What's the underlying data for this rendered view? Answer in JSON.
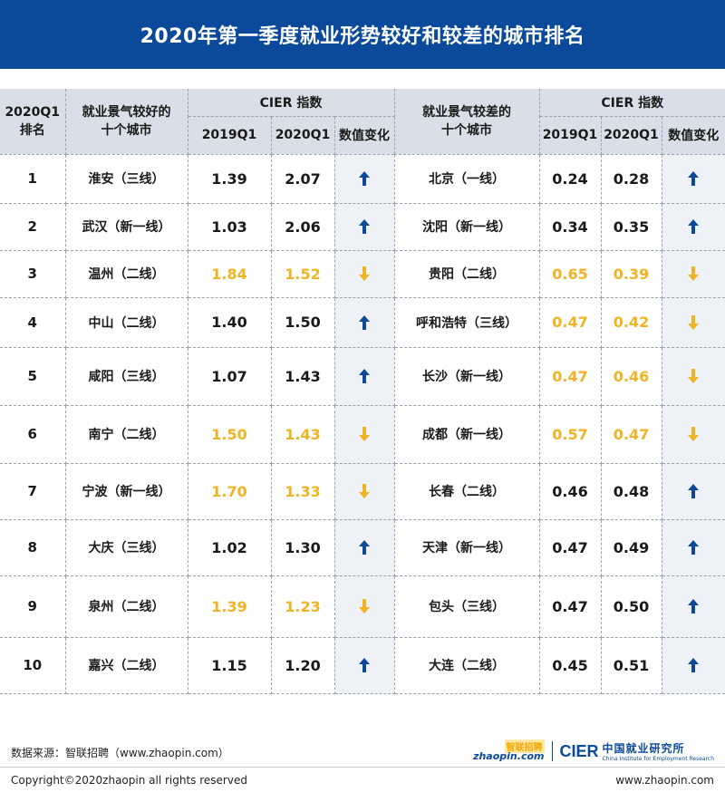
{
  "title": "2020年第一季度就业形势较好和较差的城市排名",
  "headers": {
    "rank": "2020Q1\n排名",
    "good_cities": "就业景气较好的\n十个城市",
    "cier_index": "CIER 指数",
    "q2019": "2019Q1",
    "q2020": "2020Q1",
    "change": "数值变化",
    "bad_cities": "就业景气较差的\n十个城市"
  },
  "colors": {
    "up": "#0b4a9b",
    "down": "#f0b323",
    "header_bg": "#d8dfe8",
    "title_bg": "#0b4a9b"
  },
  "rows": [
    {
      "rank": "1",
      "good": {
        "city": "淮安（三线）",
        "v2019": "1.39",
        "v2020": "2.07",
        "dir": "up"
      },
      "bad": {
        "city": "北京（一线）",
        "v2019": "0.24",
        "v2020": "0.28",
        "dir": "up"
      }
    },
    {
      "rank": "2",
      "good": {
        "city": "武汉（新一线）",
        "v2019": "1.03",
        "v2020": "2.06",
        "dir": "up"
      },
      "bad": {
        "city": "沈阳（新一线）",
        "v2019": "0.34",
        "v2020": "0.35",
        "dir": "up"
      }
    },
    {
      "rank": "3",
      "good": {
        "city": "温州（二线）",
        "v2019": "1.84",
        "v2020": "1.52",
        "dir": "down"
      },
      "bad": {
        "city": "贵阳（二线）",
        "v2019": "0.65",
        "v2020": "0.39",
        "dir": "down"
      }
    },
    {
      "rank": "4",
      "good": {
        "city": "中山（二线）",
        "v2019": "1.40",
        "v2020": "1.50",
        "dir": "up"
      },
      "bad": {
        "city": "呼和浩特（三线）",
        "v2019": "0.47",
        "v2020": "0.42",
        "dir": "down"
      }
    },
    {
      "rank": "5",
      "good": {
        "city": "咸阳（三线）",
        "v2019": "1.07",
        "v2020": "1.43",
        "dir": "up"
      },
      "bad": {
        "city": "长沙（新一线）",
        "v2019": "0.47",
        "v2020": "0.46",
        "dir": "down"
      }
    },
    {
      "rank": "6",
      "good": {
        "city": "南宁（二线）",
        "v2019": "1.50",
        "v2020": "1.43",
        "dir": "down"
      },
      "bad": {
        "city": "成都（新一线）",
        "v2019": "0.57",
        "v2020": "0.47",
        "dir": "down"
      }
    },
    {
      "rank": "7",
      "good": {
        "city": "宁波（新一线）",
        "v2019": "1.70",
        "v2020": "1.33",
        "dir": "down"
      },
      "bad": {
        "city": "长春（二线）",
        "v2019": "0.46",
        "v2020": "0.48",
        "dir": "up"
      }
    },
    {
      "rank": "8",
      "good": {
        "city": "大庆（三线）",
        "v2019": "1.02",
        "v2020": "1.30",
        "dir": "up"
      },
      "bad": {
        "city": "天津（新一线）",
        "v2019": "0.47",
        "v2020": "0.49",
        "dir": "up"
      }
    },
    {
      "rank": "9",
      "good": {
        "city": "泉州（二线）",
        "v2019": "1.39",
        "v2020": "1.23",
        "dir": "down"
      },
      "bad": {
        "city": "包头（三线）",
        "v2019": "0.47",
        "v2020": "0.50",
        "dir": "up"
      }
    },
    {
      "rank": "10",
      "good": {
        "city": "嘉兴（二线）",
        "v2019": "1.15",
        "v2020": "1.20",
        "dir": "up"
      },
      "bad": {
        "city": "大连（二线）",
        "v2019": "0.45",
        "v2020": "0.51",
        "dir": "up"
      }
    }
  ],
  "footer": {
    "source": "数据来源：智联招聘（www.zhaopin.com）",
    "copyright": "Copyright©2020zhaopin all rights reserved",
    "site": "www.zhaopin.com",
    "logo_zhaopin_cn": "智联招聘",
    "logo_zhaopin_en": "zhaopin.com",
    "logo_cier": "CIER",
    "logo_cier_cn": "中国就业研究所",
    "logo_cier_en": "China Institute for Employment Research"
  }
}
